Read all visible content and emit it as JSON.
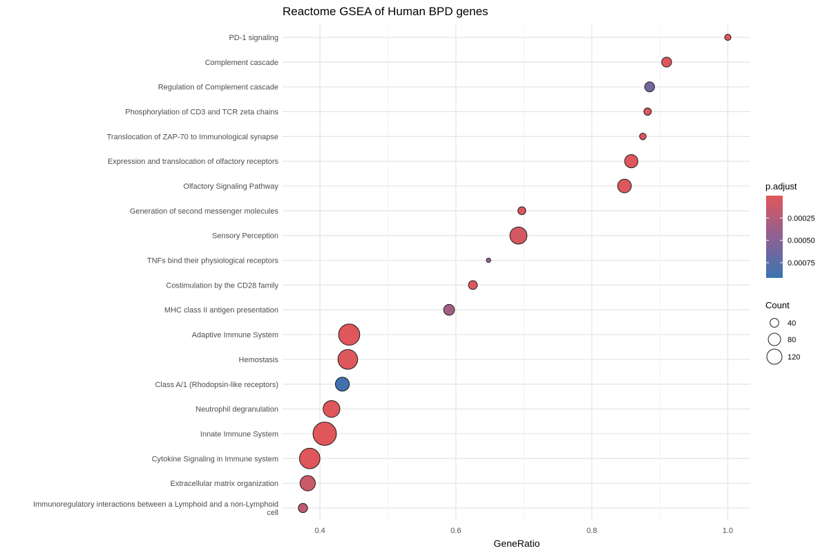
{
  "chart_data": {
    "type": "scatter",
    "title": "Reactome GSEA of Human BPD genes",
    "xlabel": "GeneRatio",
    "ylabel": "",
    "xlim": [
      0.345,
      1.033
    ],
    "x_ticks": [
      "0.4",
      "0.6",
      "0.8",
      "1.0"
    ],
    "x_tick_values": [
      0.4,
      0.6,
      0.8,
      1.0
    ],
    "grid": true,
    "legend_position": "right",
    "color_legend": {
      "title": "p.adjust",
      "labels": [
        "0.00025",
        "0.00050",
        "0.00075"
      ],
      "values": [
        0.00025,
        0.0005,
        0.00075
      ],
      "low_color": "#E15759",
      "mid_color": "#8E6194",
      "high_color": "#3A73B0",
      "min": 0.0,
      "max": 0.00092
    },
    "size_legend": {
      "title": "Count",
      "labels": [
        "40",
        "80",
        "120"
      ],
      "values": [
        40,
        80,
        120
      ]
    },
    "points": [
      {
        "category": "PD-1 signaling",
        "x": 1.0,
        "count": 10,
        "p_adjust": 1e-05
      },
      {
        "category": "Complement cascade",
        "x": 0.91,
        "count": 25,
        "p_adjust": 3e-05
      },
      {
        "category": "Regulation of Complement cascade",
        "x": 0.885,
        "count": 25,
        "p_adjust": 0.0006
      },
      {
        "category": "Phosphorylation of CD3 and TCR zeta chains",
        "x": 0.882,
        "count": 14,
        "p_adjust": 2e-05
      },
      {
        "category": "Translocation of ZAP-70 to Immunological synapse",
        "x": 0.875,
        "count": 11,
        "p_adjust": 2e-05
      },
      {
        "category": "Expression and translocation of olfactory receptors",
        "x": 0.858,
        "count": 45,
        "p_adjust": 2e-05
      },
      {
        "category": "Olfactory Signaling Pathway",
        "x": 0.848,
        "count": 48,
        "p_adjust": 3e-05
      },
      {
        "category": "Generation of second messenger molecules",
        "x": 0.697,
        "count": 16,
        "p_adjust": 3e-05
      },
      {
        "category": "Sensory Perception",
        "x": 0.692,
        "count": 75,
        "p_adjust": 8e-05
      },
      {
        "category": "TNFs bind their physiological receptors",
        "x": 0.648,
        "count": 5,
        "p_adjust": 0.0004
      },
      {
        "category": "Costimulation by the CD28 family",
        "x": 0.625,
        "count": 20,
        "p_adjust": 2e-05
      },
      {
        "category": "MHC class II antigen presentation",
        "x": 0.59,
        "count": 30,
        "p_adjust": 0.00035
      },
      {
        "category": "Adaptive Immune System",
        "x": 0.443,
        "count": 115,
        "p_adjust": 1e-05
      },
      {
        "category": "Hemostasis",
        "x": 0.441,
        "count": 100,
        "p_adjust": 2e-05
      },
      {
        "category": "Class A/1 (Rhodopsin-like receptors)",
        "x": 0.433,
        "count": 50,
        "p_adjust": 0.00088
      },
      {
        "category": "Neutrophil degranulation",
        "x": 0.417,
        "count": 72,
        "p_adjust": 1e-05
      },
      {
        "category": "Innate Immune System",
        "x": 0.407,
        "count": 140,
        "p_adjust": 1e-05
      },
      {
        "category": "Cytokine Signaling in Immune system",
        "x": 0.385,
        "count": 108,
        "p_adjust": 1e-05
      },
      {
        "category": "Extracellular matrix organization",
        "x": 0.382,
        "count": 60,
        "p_adjust": 0.00012
      },
      {
        "category": "Immunoregulatory interactions between a Lymphoid and a non-Lymphoid cell",
        "x": 0.375,
        "count": 22,
        "p_adjust": 0.0002
      }
    ]
  }
}
